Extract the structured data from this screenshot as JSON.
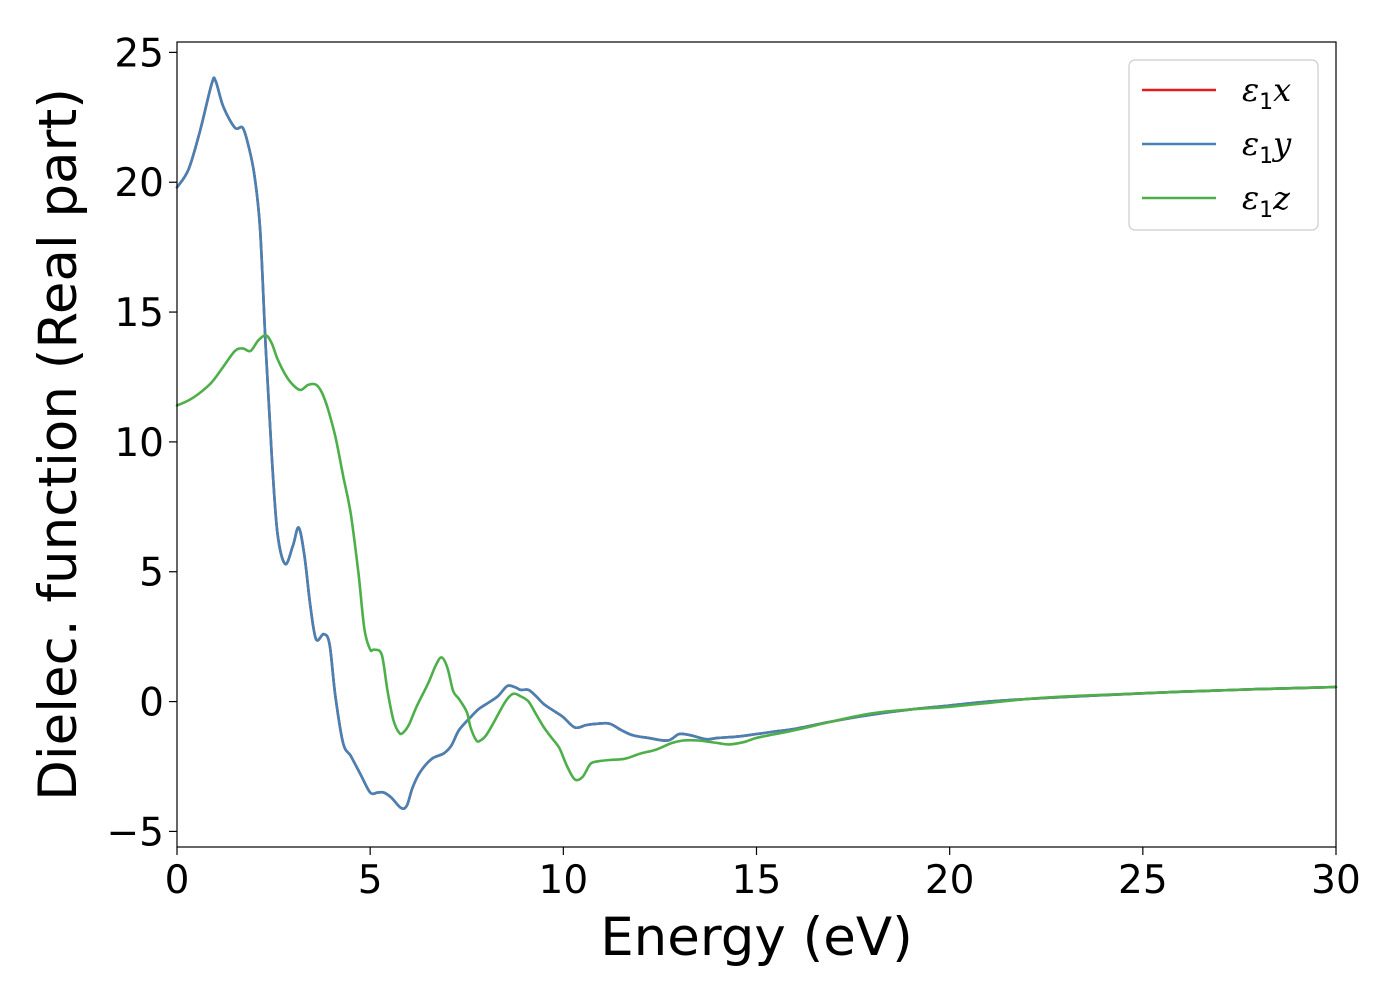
{
  "chart_data": {
    "type": "line",
    "xlabel": "Energy (eV)",
    "ylabel": "Dielec. function (Real part)",
    "xlim": [
      0,
      30
    ],
    "ylim": [
      -5.6,
      25.4
    ],
    "xticks": [
      0,
      5,
      10,
      15,
      20,
      25,
      30
    ],
    "yticks": [
      -5,
      0,
      5,
      10,
      15,
      20,
      25
    ],
    "xtick_labels": [
      "0",
      "5",
      "10",
      "15",
      "20",
      "25",
      "30"
    ],
    "ytick_labels": [
      "−5",
      "0",
      "5",
      "10",
      "15",
      "20",
      "25"
    ],
    "grid": false,
    "legend_position": "top-right",
    "series": [
      {
        "name": "x",
        "legend_symbol": "ε",
        "legend_sub": "1",
        "legend_var": "x",
        "color": "#e41a1c",
        "x": [
          0,
          0.3,
          0.6,
          0.9,
          1.0,
          1.2,
          1.5,
          1.7,
          1.85,
          2.0,
          2.15,
          2.3,
          2.45,
          2.6,
          2.8,
          3.0,
          3.15,
          3.3,
          3.45,
          3.6,
          3.8,
          3.95,
          4.1,
          4.3,
          4.5,
          4.75,
          5.0,
          5.2,
          5.35,
          5.55,
          5.8,
          5.95,
          6.1,
          6.3,
          6.6,
          6.9,
          7.1,
          7.3,
          7.6,
          7.8,
          8.0,
          8.3,
          8.55,
          8.75,
          8.9,
          9.1,
          9.3,
          9.5,
          9.8,
          10.0,
          10.3,
          10.6,
          10.9,
          11.2,
          11.5,
          11.8,
          12.2,
          12.7,
          13.0,
          13.3,
          13.7,
          14.0,
          14.5,
          15.0,
          15.5,
          16.0,
          17.0,
          18.0,
          19.0,
          20.0,
          21.0,
          22.0,
          23.0,
          24.0,
          25.0,
          26.0,
          27.0,
          28.0,
          29.0,
          30.0
        ],
        "y": [
          19.8,
          20.5,
          22.0,
          23.8,
          23.9,
          22.9,
          22.1,
          22.1,
          21.4,
          20.3,
          18.2,
          13.5,
          9.5,
          6.5,
          5.3,
          6.0,
          6.7,
          5.6,
          3.7,
          2.4,
          2.6,
          2.2,
          0.2,
          -1.6,
          -2.1,
          -2.8,
          -3.5,
          -3.5,
          -3.5,
          -3.7,
          -4.1,
          -4.0,
          -3.3,
          -2.7,
          -2.2,
          -2.0,
          -1.7,
          -1.1,
          -0.6,
          -0.3,
          -0.1,
          0.2,
          0.6,
          0.55,
          0.45,
          0.45,
          0.2,
          -0.1,
          -0.4,
          -0.6,
          -1.0,
          -0.9,
          -0.85,
          -0.85,
          -1.1,
          -1.3,
          -1.4,
          -1.5,
          -1.25,
          -1.3,
          -1.45,
          -1.4,
          -1.35,
          -1.25,
          -1.15,
          -1.05,
          -0.75,
          -0.5,
          -0.3,
          -0.15,
          0.0,
          0.1,
          0.18,
          0.25,
          0.32,
          0.38,
          0.43,
          0.48,
          0.52,
          0.56
        ]
      },
      {
        "name": "y",
        "legend_symbol": "ε",
        "legend_sub": "1",
        "legend_var": "y",
        "color": "#4682b4",
        "x": [
          0,
          0.3,
          0.6,
          0.9,
          1.0,
          1.2,
          1.5,
          1.7,
          1.85,
          2.0,
          2.15,
          2.3,
          2.45,
          2.6,
          2.8,
          3.0,
          3.15,
          3.3,
          3.45,
          3.6,
          3.8,
          3.95,
          4.1,
          4.3,
          4.5,
          4.75,
          5.0,
          5.2,
          5.35,
          5.55,
          5.8,
          5.95,
          6.1,
          6.3,
          6.6,
          6.9,
          7.1,
          7.3,
          7.6,
          7.8,
          8.0,
          8.3,
          8.55,
          8.75,
          8.9,
          9.1,
          9.3,
          9.5,
          9.8,
          10.0,
          10.3,
          10.6,
          10.9,
          11.2,
          11.5,
          11.8,
          12.2,
          12.7,
          13.0,
          13.3,
          13.7,
          14.0,
          14.5,
          15.0,
          15.5,
          16.0,
          17.0,
          18.0,
          19.0,
          20.0,
          21.0,
          22.0,
          23.0,
          24.0,
          25.0,
          26.0,
          27.0,
          28.0,
          29.0,
          30.0
        ],
        "y": [
          19.8,
          20.5,
          22.0,
          23.8,
          23.9,
          22.9,
          22.1,
          22.1,
          21.4,
          20.3,
          18.2,
          13.5,
          9.5,
          6.5,
          5.3,
          6.0,
          6.7,
          5.6,
          3.7,
          2.4,
          2.6,
          2.2,
          0.2,
          -1.6,
          -2.1,
          -2.8,
          -3.5,
          -3.5,
          -3.5,
          -3.7,
          -4.1,
          -4.0,
          -3.3,
          -2.7,
          -2.2,
          -2.0,
          -1.7,
          -1.1,
          -0.6,
          -0.3,
          -0.1,
          0.2,
          0.6,
          0.55,
          0.45,
          0.45,
          0.2,
          -0.1,
          -0.4,
          -0.6,
          -1.0,
          -0.9,
          -0.85,
          -0.85,
          -1.1,
          -1.3,
          -1.4,
          -1.5,
          -1.25,
          -1.3,
          -1.45,
          -1.4,
          -1.35,
          -1.25,
          -1.15,
          -1.05,
          -0.75,
          -0.5,
          -0.3,
          -0.15,
          0.0,
          0.1,
          0.18,
          0.25,
          0.32,
          0.38,
          0.43,
          0.48,
          0.52,
          0.56
        ]
      },
      {
        "name": "z",
        "legend_symbol": "ε",
        "legend_sub": "1",
        "legend_var": "z",
        "color": "#4daf4a",
        "x": [
          0,
          0.3,
          0.6,
          0.9,
          1.2,
          1.5,
          1.7,
          1.9,
          2.1,
          2.3,
          2.45,
          2.6,
          2.8,
          3.0,
          3.2,
          3.4,
          3.6,
          3.75,
          3.9,
          4.1,
          4.3,
          4.5,
          4.7,
          4.85,
          5.0,
          5.1,
          5.3,
          5.45,
          5.6,
          5.75,
          5.85,
          6.0,
          6.2,
          6.5,
          6.7,
          6.85,
          7.0,
          7.15,
          7.3,
          7.5,
          7.6,
          7.75,
          7.85,
          8.0,
          8.2,
          8.5,
          8.7,
          8.9,
          9.1,
          9.3,
          9.5,
          9.7,
          9.9,
          10.1,
          10.3,
          10.5,
          10.7,
          10.9,
          11.2,
          11.6,
          12.0,
          12.4,
          12.8,
          13.1,
          13.5,
          14.0,
          14.3,
          14.7,
          15.0,
          15.5,
          16.0,
          17.0,
          18.0,
          19.0,
          20.0,
          21.0,
          22.0,
          23.0,
          24.0,
          25.0,
          26.0,
          27.0,
          28.0,
          29.0,
          30.0
        ],
        "y": [
          11.4,
          11.6,
          11.9,
          12.3,
          12.9,
          13.5,
          13.6,
          13.5,
          13.9,
          14.1,
          13.8,
          13.2,
          12.6,
          12.2,
          12.0,
          12.2,
          12.2,
          11.9,
          11.3,
          10.2,
          8.7,
          7.2,
          4.9,
          2.8,
          2.0,
          2.0,
          1.8,
          0.4,
          -0.7,
          -1.2,
          -1.2,
          -0.9,
          -0.2,
          0.7,
          1.4,
          1.7,
          1.3,
          0.4,
          0.1,
          -0.4,
          -1.0,
          -1.5,
          -1.5,
          -1.3,
          -0.8,
          0.0,
          0.3,
          0.2,
          0.0,
          -0.5,
          -1.0,
          -1.4,
          -1.8,
          -2.5,
          -3.0,
          -2.9,
          -2.4,
          -2.3,
          -2.25,
          -2.2,
          -2.0,
          -1.85,
          -1.6,
          -1.5,
          -1.5,
          -1.6,
          -1.65,
          -1.55,
          -1.4,
          -1.25,
          -1.1,
          -0.75,
          -0.45,
          -0.3,
          -0.2,
          -0.05,
          0.1,
          0.2,
          0.26,
          0.32,
          0.38,
          0.43,
          0.48,
          0.52,
          0.56
        ]
      }
    ]
  }
}
